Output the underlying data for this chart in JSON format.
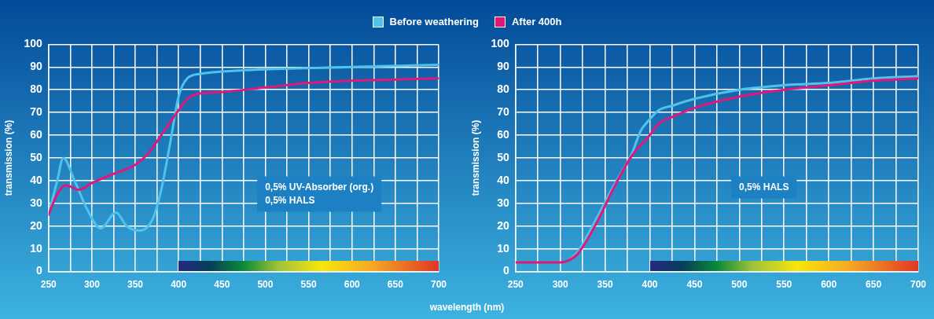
{
  "chart_data": [
    {
      "type": "line",
      "ylabel": "transmission (%)",
      "xlabel": "wavelength (nm)",
      "legend": "top",
      "grid": true,
      "marker": "none",
      "line_style": "solid",
      "xlim": [
        250,
        700
      ],
      "ylim": [
        0,
        100
      ],
      "xticks": [
        250,
        {
          "value": 275,
          "label": null
        },
        300,
        {
          "value": 325,
          "label": null
        },
        350,
        {
          "value": 375,
          "label": null
        },
        400,
        {
          "value": 425,
          "label": null
        },
        450,
        {
          "value": 475,
          "label": null
        },
        500,
        {
          "value": 525,
          "label": null
        },
        550,
        {
          "value": 575,
          "label": null
        },
        600,
        {
          "value": 625,
          "label": null
        },
        650,
        {
          "value": 675,
          "label": null
        },
        700
      ],
      "yticks": [
        0,
        10,
        20,
        30,
        40,
        50,
        60,
        70,
        80,
        90,
        100
      ],
      "annotations": [
        "0,5% UV-Absorber (org.)",
        "0,5% HALS"
      ],
      "series": [
        {
          "name": "Before weathering",
          "color": "#4fc3ea",
          "x": [
            250,
            260,
            267,
            280,
            295,
            310,
            328,
            340,
            355,
            370,
            380,
            390,
            400,
            410,
            425,
            450,
            500,
            600,
            700
          ],
          "values": [
            25,
            40,
            50,
            40,
            27,
            19,
            26,
            20,
            18,
            23,
            36,
            56,
            77,
            85,
            87,
            88,
            89,
            90,
            91
          ]
        },
        {
          "name": "After 400h",
          "color": "#e0187a",
          "x": [
            250,
            260,
            270,
            285,
            300,
            325,
            350,
            365,
            380,
            400,
            410,
            420,
            450,
            500,
            550,
            600,
            650,
            700
          ],
          "values": [
            25,
            34,
            38,
            36,
            39,
            43,
            47,
            52,
            60,
            71,
            76,
            78,
            79,
            81,
            83,
            84,
            84.5,
            85
          ]
        }
      ]
    },
    {
      "type": "line",
      "ylabel": "transmission (%)",
      "grid": true,
      "marker": "none",
      "line_style": "solid",
      "xlim": [
        250,
        700
      ],
      "ylim": [
        0,
        100
      ],
      "xticks": [
        250,
        {
          "value": 275,
          "label": null
        },
        300,
        {
          "value": 325,
          "label": null
        },
        350,
        {
          "value": 375,
          "label": null
        },
        400,
        {
          "value": 425,
          "label": null
        },
        450,
        {
          "value": 475,
          "label": null
        },
        500,
        {
          "value": 525,
          "label": null
        },
        550,
        {
          "value": 575,
          "label": null
        },
        600,
        {
          "value": 625,
          "label": null
        },
        650,
        {
          "value": 675,
          "label": null
        },
        700
      ],
      "yticks": [
        0,
        10,
        20,
        30,
        40,
        50,
        60,
        70,
        80,
        90,
        100
      ],
      "annotations": [
        "0,5% HALS"
      ],
      "series": [
        {
          "color": "#4fc3ea",
          "x": [
            310,
            320,
            340,
            360,
            380,
            390,
            400,
            410,
            425,
            450,
            500,
            550,
            600,
            650,
            700
          ],
          "values": [
            5,
            9,
            23,
            38,
            52,
            62,
            67,
            71,
            73,
            76,
            80,
            82,
            83,
            85,
            86
          ]
        },
        {
          "color": "#e0187a",
          "x": [
            250,
            300,
            310,
            320,
            340,
            360,
            380,
            400,
            410,
            425,
            450,
            500,
            550,
            600,
            650,
            700
          ],
          "values": [
            4,
            4,
            5,
            8,
            21,
            37,
            51,
            60,
            65,
            68,
            72,
            77,
            80,
            82,
            84,
            85
          ]
        }
      ]
    }
  ]
}
